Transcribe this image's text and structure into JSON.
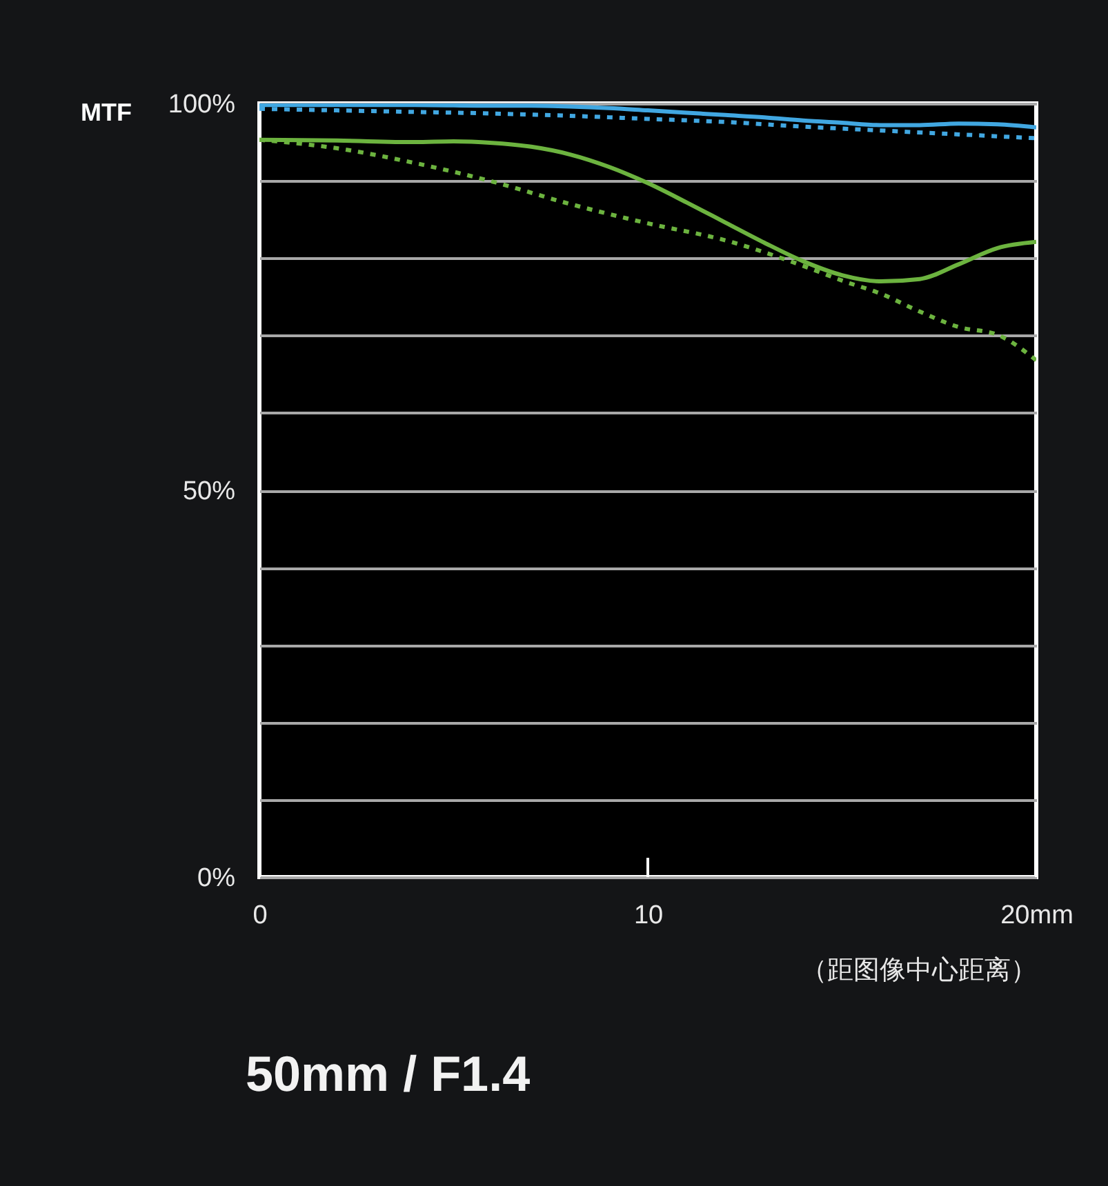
{
  "chart_data": {
    "type": "line",
    "title": "50mm / F1.4",
    "ylabel": "MTF",
    "xlabel": "（距图像中心距离）",
    "xlim": [
      0,
      20
    ],
    "ylim": [
      0,
      100
    ],
    "xticks": [
      0,
      10,
      {
        "value": 20,
        "label": "20mm"
      }
    ],
    "yticks": [
      {
        "value": 0,
        "label": "0%"
      },
      {
        "value": 10,
        "label": null
      },
      {
        "value": 20,
        "label": null
      },
      {
        "value": 30,
        "label": null
      },
      {
        "value": 40,
        "label": null
      },
      {
        "value": 50,
        "label": "50%"
      },
      {
        "value": 60,
        "label": null
      },
      {
        "value": 70,
        "label": null
      },
      {
        "value": 80,
        "label": null
      },
      {
        "value": 90,
        "label": null
      },
      {
        "value": 100,
        "label": "100%"
      }
    ],
    "grid": "y",
    "series": [
      {
        "color": "#41a7e1",
        "line_style": "solid",
        "x": [
          0,
          2,
          4,
          6,
          7,
          8,
          9,
          10,
          11,
          12,
          13,
          14,
          15,
          16,
          17,
          18,
          19,
          20
        ],
        "values": [
          99.8,
          99.8,
          99.8,
          99.7,
          99.7,
          99.6,
          99.4,
          99.1,
          98.8,
          98.5,
          98.2,
          97.8,
          97.5,
          97.2,
          97.2,
          97.4,
          97.3,
          96.9
        ]
      },
      {
        "color": "#41a7e1",
        "line_style": "dotted",
        "x": [
          0,
          2,
          4,
          6,
          8,
          10,
          12,
          14,
          16,
          18,
          20
        ],
        "values": [
          99.3,
          99.1,
          98.9,
          98.7,
          98.4,
          98.0,
          97.6,
          97.0,
          96.5,
          96.0,
          95.5
        ]
      },
      {
        "color": "#6cb33f",
        "line_style": "solid",
        "x": [
          0,
          2,
          4,
          5,
          6,
          7,
          8,
          9,
          10,
          11,
          12,
          13,
          14,
          15,
          16,
          17,
          18,
          19,
          20
        ],
        "values": [
          95.3,
          95.2,
          95.0,
          95.1,
          94.9,
          94.4,
          93.4,
          91.8,
          89.7,
          87.2,
          84.6,
          82.0,
          79.6,
          77.8,
          77.0,
          77.3,
          79.2,
          81.3,
          82.1
        ]
      },
      {
        "color": "#6cb33f",
        "line_style": "dotted",
        "x": [
          0,
          2,
          4,
          6,
          8,
          10,
          12,
          14,
          15,
          16,
          17,
          18,
          19,
          20
        ],
        "values": [
          95.3,
          94.2,
          92.3,
          89.9,
          87.0,
          84.5,
          82.3,
          79.0,
          77.1,
          75.4,
          73.1,
          71.1,
          70.1,
          66.8
        ]
      }
    ]
  }
}
